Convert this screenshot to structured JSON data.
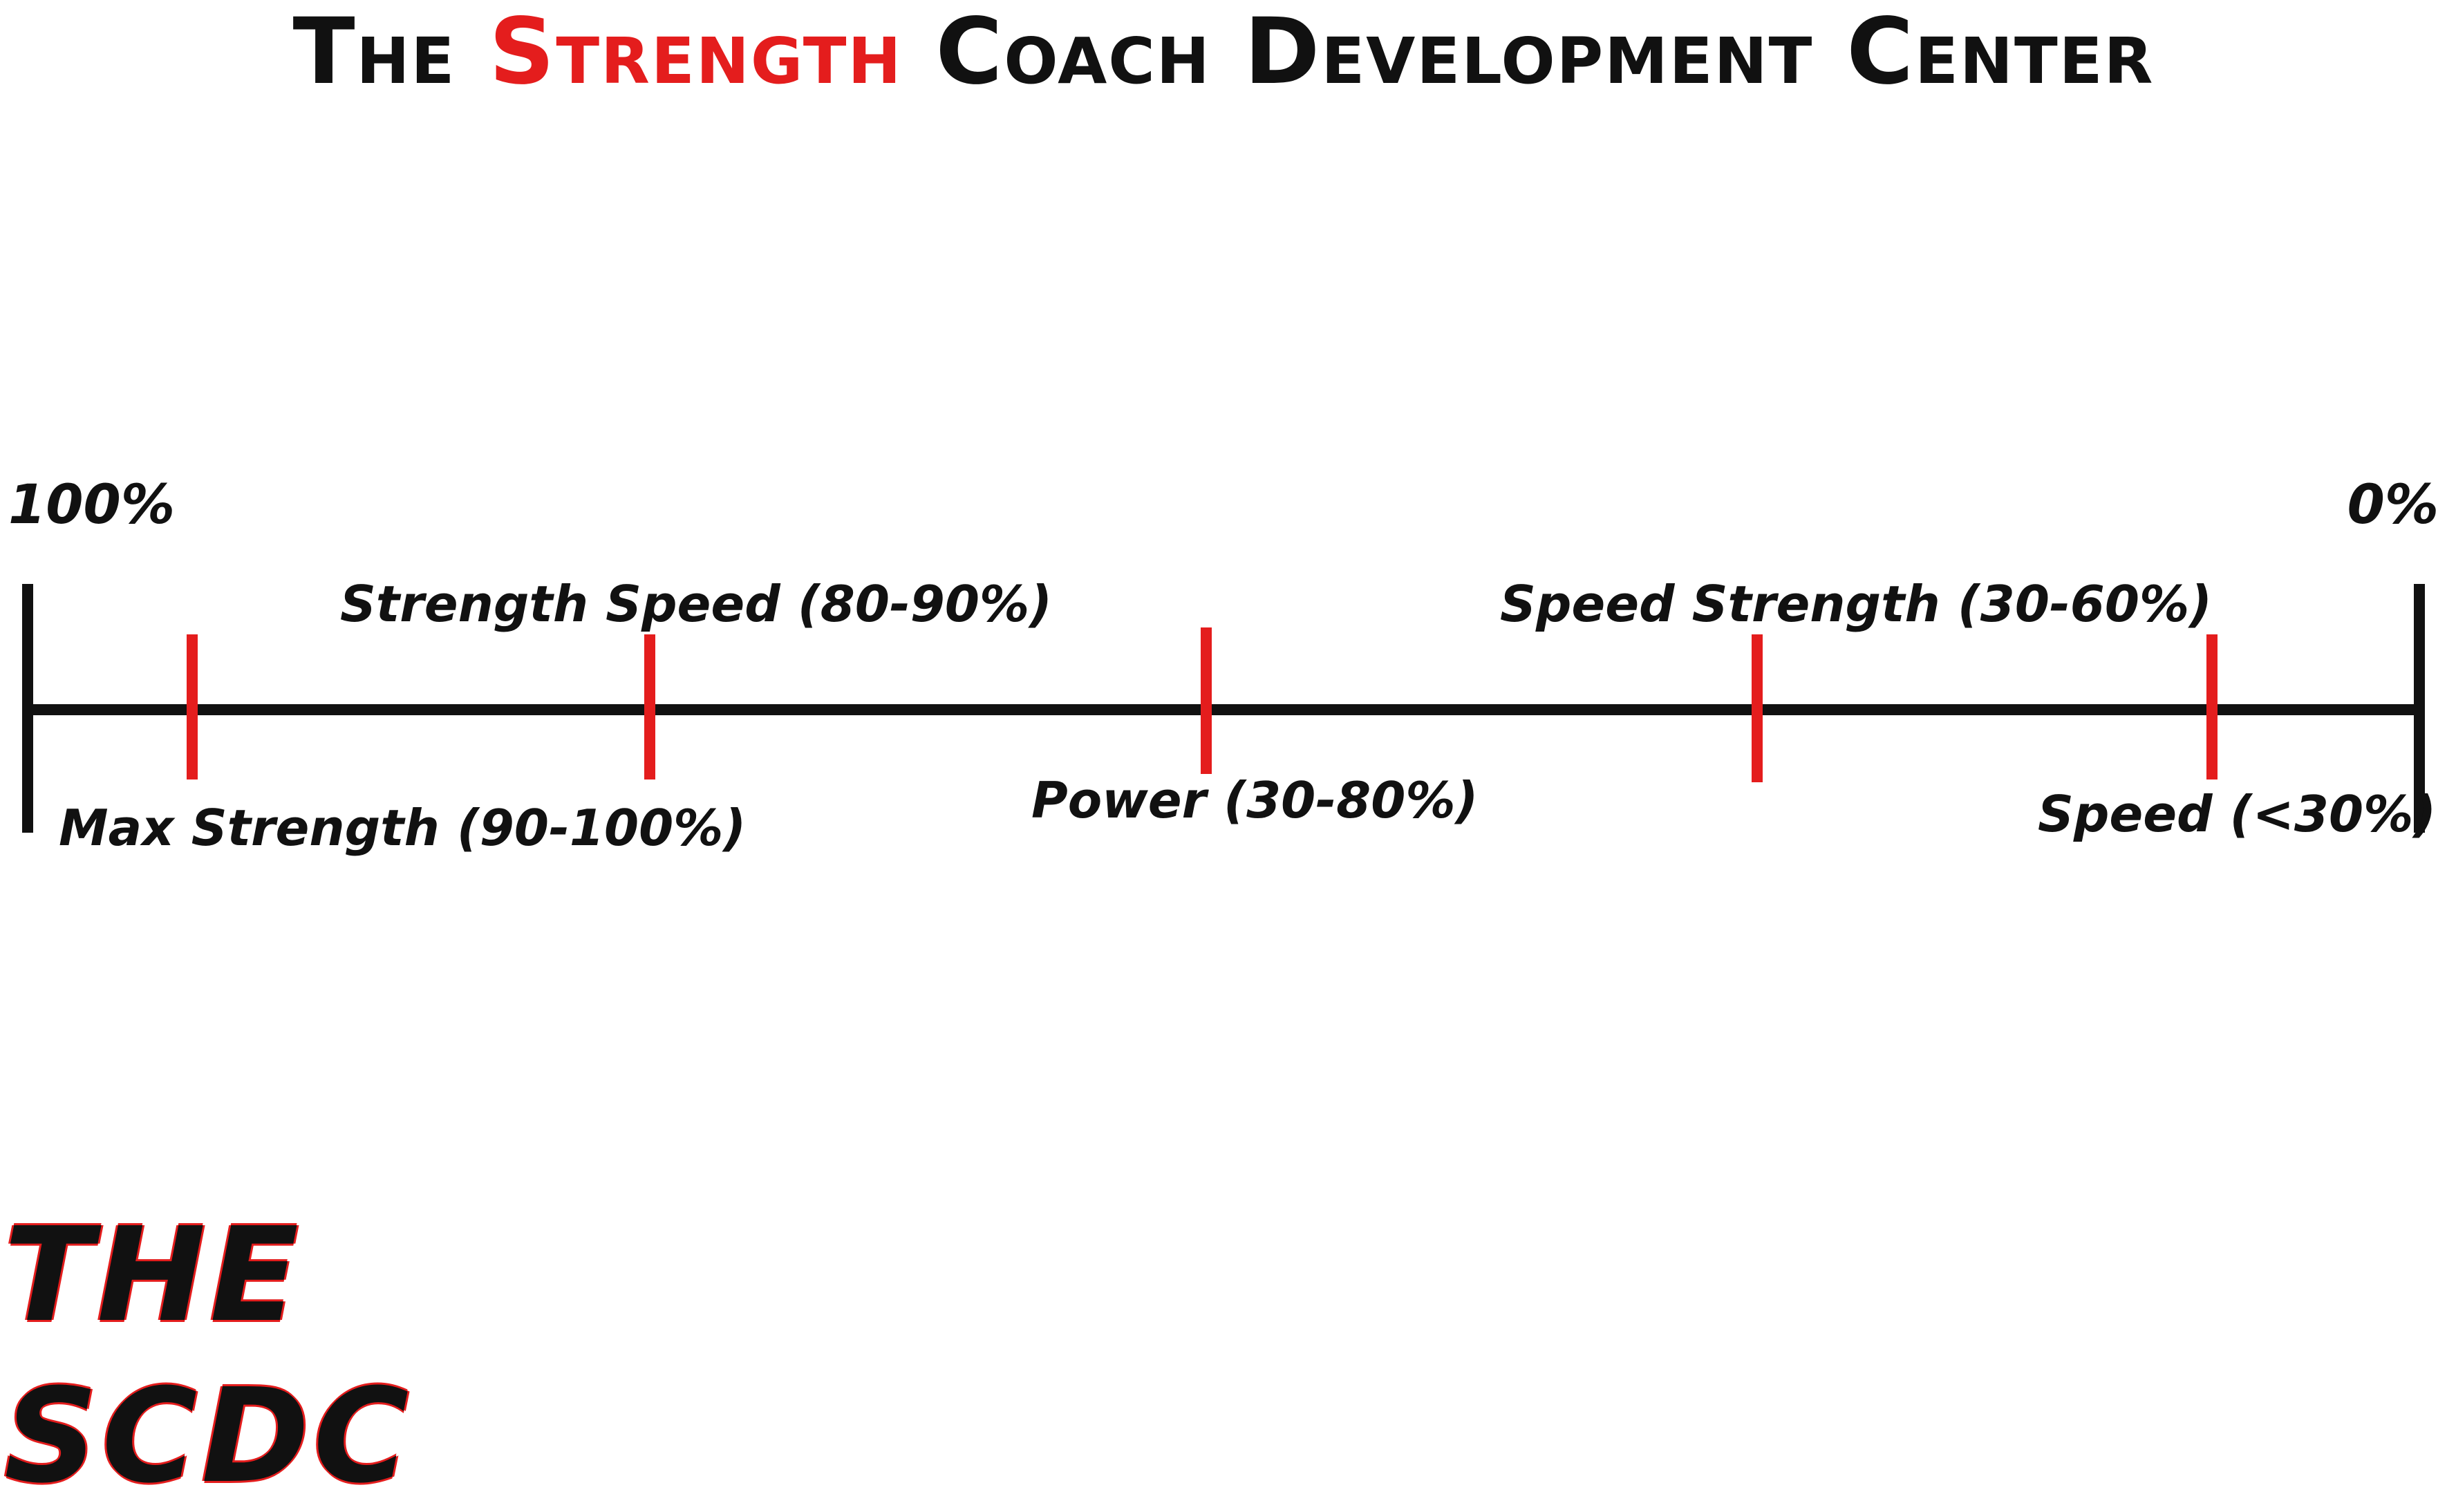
{
  "header": {
    "title_prefix": "The ",
    "title_accent": "Strength",
    "title_suffix": " Coach Development Center"
  },
  "scale": {
    "left_end_label": "100%",
    "right_end_label": "0%"
  },
  "zones": {
    "max_strength": "Max Strength (90-100%)",
    "strength_speed": "Strength Speed (80-90%)",
    "power": "Power (30-80%)",
    "speed_strength": "Speed Strength (30-60%)",
    "speed": "Speed (<30%)"
  },
  "colors": {
    "axis": "#111111",
    "accent": "#e41d1d"
  },
  "logo": {
    "line1": "THE",
    "line2": "SCDC"
  }
}
